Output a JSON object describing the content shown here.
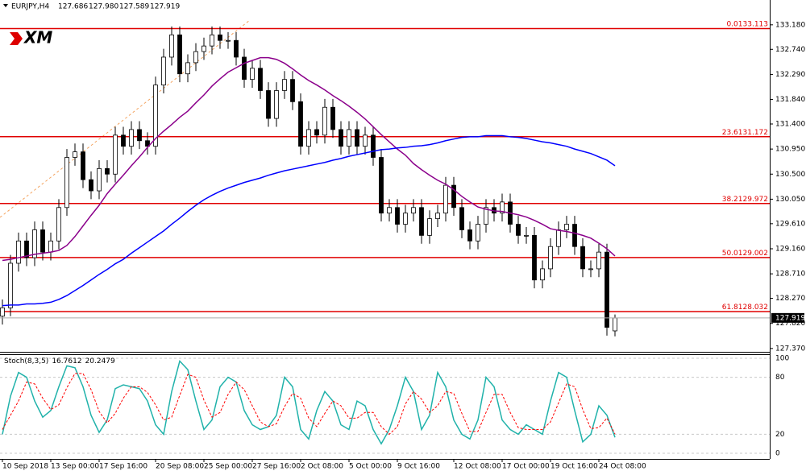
{
  "header": {
    "symbol": "EURJPY,H4",
    "ohlc": [
      "127.686",
      "127.980",
      "127.589",
      "127.919"
    ]
  },
  "logo": "XM",
  "chart_data": [
    {
      "type": "candlestick",
      "categories": [
        "10 Sep 2018",
        null,
        null,
        null,
        null,
        null,
        "13 Sep 00:00",
        null,
        null,
        null,
        null,
        null,
        "17 Sep 16:00",
        null,
        null,
        null,
        null,
        null,
        null,
        "20 Sep 08:00",
        null,
        null,
        null,
        null,
        null,
        "25 Sep 00:00",
        null,
        null,
        null,
        null,
        null,
        "27 Sep 16:00",
        null,
        null,
        null,
        null,
        null,
        "2 Oct 08:00",
        null,
        null,
        null,
        null,
        null,
        "5 Oct 00:00",
        null,
        null,
        null,
        null,
        null,
        "9 Oct 16:00",
        null,
        null,
        null,
        null,
        null,
        null,
        "12 Oct 08:00",
        null,
        null,
        null,
        null,
        null,
        "17 Oct 00:00",
        null,
        null,
        null,
        null,
        null,
        "19 Oct 16:00",
        null,
        null,
        null,
        null,
        null,
        "24 Oct 08:00",
        null,
        null
      ],
      "open": [
        127.95,
        128.1,
        128.9,
        129.3,
        129.0,
        129.5,
        129.1,
        129.3,
        129.9,
        130.8,
        130.9,
        130.4,
        130.2,
        130.6,
        130.5,
        131.2,
        131.0,
        131.3,
        131.1,
        131.0,
        132.1,
        132.6,
        133.0,
        132.3,
        132.5,
        132.7,
        132.8,
        133.0,
        132.9,
        132.9,
        132.6,
        132.2,
        132.4,
        132.0,
        131.5,
        132.0,
        132.2,
        131.8,
        131.0,
        131.3,
        131.2,
        131.7,
        131.3,
        131.0,
        131.3,
        131.0,
        131.2,
        130.8,
        129.8,
        129.9,
        129.6,
        129.8,
        129.9,
        129.4,
        129.7,
        129.8,
        130.3,
        129.9,
        129.5,
        129.3,
        129.6,
        129.9,
        129.8,
        130.0,
        129.6,
        129.4,
        129.4,
        128.6,
        128.8,
        129.2,
        129.5,
        129.6,
        129.2,
        128.8,
        128.8,
        129.1,
        127.686
      ],
      "high": [
        128.25,
        129.05,
        129.45,
        129.45,
        129.65,
        129.65,
        129.45,
        130.05,
        130.95,
        131.05,
        131.05,
        130.55,
        130.75,
        130.75,
        131.35,
        131.35,
        131.45,
        131.45,
        131.25,
        132.25,
        132.75,
        133.15,
        133.15,
        132.65,
        132.85,
        132.95,
        133.15,
        133.15,
        133.05,
        133.05,
        132.75,
        132.55,
        132.55,
        132.15,
        132.15,
        132.35,
        132.35,
        131.95,
        131.45,
        131.45,
        131.85,
        131.85,
        131.45,
        131.45,
        131.45,
        131.35,
        131.35,
        130.95,
        130.05,
        130.05,
        129.95,
        130.05,
        130.05,
        129.85,
        129.95,
        130.45,
        130.45,
        130.05,
        129.65,
        129.75,
        130.05,
        130.05,
        130.15,
        130.15,
        129.75,
        129.55,
        129.55,
        128.95,
        129.35,
        129.65,
        129.75,
        129.75,
        129.35,
        128.95,
        129.25,
        129.25,
        127.98
      ],
      "low": [
        127.8,
        127.95,
        128.75,
        128.85,
        128.85,
        128.95,
        128.95,
        129.15,
        129.75,
        130.65,
        130.25,
        130.05,
        130.05,
        130.35,
        130.35,
        130.85,
        130.85,
        130.95,
        130.85,
        130.85,
        131.95,
        132.45,
        132.15,
        132.15,
        132.35,
        132.55,
        132.65,
        132.75,
        132.75,
        132.45,
        132.05,
        132.05,
        131.85,
        131.35,
        131.35,
        131.85,
        131.65,
        130.85,
        130.85,
        131.05,
        131.05,
        131.15,
        130.85,
        130.85,
        130.85,
        130.85,
        130.65,
        129.65,
        129.65,
        129.45,
        129.45,
        129.65,
        129.25,
        129.25,
        129.55,
        129.65,
        129.75,
        129.35,
        129.15,
        129.15,
        129.45,
        129.65,
        129.65,
        129.45,
        129.25,
        129.25,
        128.45,
        128.45,
        128.65,
        129.05,
        129.35,
        129.05,
        128.65,
        128.65,
        128.65,
        127.6,
        127.589
      ],
      "close": [
        128.1,
        128.9,
        129.3,
        129.0,
        129.5,
        129.1,
        129.3,
        129.9,
        130.8,
        130.9,
        130.4,
        130.2,
        130.6,
        130.5,
        131.2,
        131.0,
        131.3,
        131.1,
        131.0,
        132.1,
        132.6,
        133.0,
        132.3,
        132.5,
        132.7,
        132.8,
        133.0,
        132.9,
        132.9,
        132.6,
        132.2,
        132.4,
        132.0,
        131.5,
        132.0,
        132.2,
        131.8,
        131.0,
        131.3,
        131.2,
        131.7,
        131.3,
        131.0,
        131.3,
        131.0,
        131.2,
        130.8,
        129.8,
        129.9,
        129.6,
        129.8,
        129.9,
        129.4,
        129.7,
        129.8,
        130.3,
        129.9,
        129.5,
        129.3,
        129.6,
        129.9,
        129.8,
        130.0,
        129.6,
        129.4,
        129.4,
        128.6,
        128.8,
        129.2,
        129.5,
        129.6,
        129.2,
        128.8,
        128.8,
        129.1,
        127.75,
        127.919
      ],
      "series": [
        {
          "color": "#8b008b",
          "values": [
            128.95,
            128.97,
            129.0,
            129.03,
            129.06,
            129.08,
            129.1,
            129.13,
            129.22,
            129.38,
            129.57,
            129.76,
            129.94,
            130.15,
            130.32,
            130.48,
            130.65,
            130.81,
            130.98,
            131.14,
            131.27,
            131.39,
            131.52,
            131.63,
            131.78,
            131.92,
            132.08,
            132.21,
            132.33,
            132.41,
            132.49,
            132.54,
            132.59,
            132.59,
            132.56,
            132.49,
            132.39,
            132.28,
            132.18,
            132.1,
            132.01,
            131.91,
            131.82,
            131.72,
            131.61,
            131.49,
            131.35,
            131.21,
            131.08,
            130.95,
            130.84,
            130.69,
            130.58,
            130.48,
            130.39,
            130.32,
            130.22,
            130.1,
            130.0,
            129.91,
            129.87,
            129.84,
            129.83,
            129.8,
            129.77,
            129.73,
            129.67,
            129.6,
            129.52,
            129.49,
            129.47,
            129.44,
            129.4,
            129.35,
            129.26,
            129.16,
            129.03
          ]
        },
        {
          "color": "#0000ff",
          "values": [
            128.14,
            128.15,
            128.15,
            128.17,
            128.17,
            128.18,
            128.2,
            128.25,
            128.32,
            128.41,
            128.5,
            128.6,
            128.7,
            128.79,
            128.89,
            128.97,
            129.08,
            129.18,
            129.28,
            129.38,
            129.48,
            129.6,
            129.71,
            129.83,
            129.94,
            130.04,
            130.12,
            130.19,
            130.25,
            130.3,
            130.35,
            130.39,
            130.43,
            130.48,
            130.52,
            130.56,
            130.59,
            130.62,
            130.65,
            130.68,
            130.71,
            130.75,
            130.78,
            130.82,
            130.85,
            130.88,
            130.91,
            130.94,
            130.95,
            130.97,
            130.98,
            131.0,
            131.01,
            131.03,
            131.06,
            131.1,
            131.13,
            131.16,
            131.17,
            131.17,
            131.19,
            131.19,
            131.19,
            131.17,
            131.16,
            131.14,
            131.11,
            131.08,
            131.06,
            131.03,
            131.0,
            130.95,
            130.91,
            130.87,
            130.81,
            130.75,
            130.65
          ]
        }
      ],
      "fibonacci": [
        {
          "level": "0.0",
          "value": 133.113
        },
        {
          "level": "23.6",
          "value": 131.172
        },
        {
          "level": "38.2",
          "value": 129.972
        },
        {
          "level": "50.0",
          "value": 129.002
        },
        {
          "level": "61.8",
          "value": 128.032
        }
      ],
      "fib_color": "#e00000",
      "ylim": [
        127.31,
        133.51
      ],
      "yticks": [
        {
          "value": 127.37,
          "label": "127.370"
        },
        {
          "value": 127.82,
          "label": "127.820"
        },
        {
          "value": 128.27,
          "label": "128.270"
        },
        {
          "value": 128.71,
          "label": "128.710"
        },
        {
          "value": 129.16,
          "label": "129.160"
        },
        {
          "value": 129.61,
          "label": "129.610"
        },
        {
          "value": 130.05,
          "label": "130.050"
        },
        {
          "value": 130.5,
          "label": "130.500"
        },
        {
          "value": 130.95,
          "label": "130.950"
        },
        {
          "value": 131.4,
          "label": "131.400"
        },
        {
          "value": 131.84,
          "label": "131.840"
        },
        {
          "value": 132.29,
          "label": "132.290"
        },
        {
          "value": 132.74,
          "label": "132.740"
        },
        {
          "value": 133.18,
          "label": "133.180"
        }
      ]
    },
    {
      "type": "line",
      "title": "Stoch(8,3,5)",
      "series": [
        {
          "color": "#20b2aa",
          "values": [
            20,
            60,
            85,
            80,
            55,
            38,
            45,
            70,
            92,
            90,
            70,
            40,
            22,
            35,
            68,
            72,
            70,
            68,
            55,
            30,
            20,
            65,
            97,
            88,
            55,
            25,
            35,
            70,
            80,
            75,
            45,
            30,
            25,
            28,
            40,
            80,
            70,
            25,
            15,
            45,
            65,
            55,
            30,
            25,
            55,
            50,
            25,
            10,
            25,
            50,
            80,
            65,
            25,
            40,
            85,
            70,
            35,
            20,
            15,
            35,
            80,
            70,
            35,
            25,
            20,
            30,
            25,
            20,
            55,
            85,
            80,
            45,
            12,
            20,
            50,
            40,
            16.7612
          ]
        },
        {
          "color": "#ff0000",
          "dashed": true,
          "values": [
            25,
            40,
            55,
            75,
            73,
            58,
            46,
            51,
            69,
            84,
            84,
            67,
            44,
            32,
            42,
            58,
            70,
            70,
            64,
            51,
            35,
            38,
            61,
            83,
            80,
            56,
            38,
            43,
            62,
            75,
            67,
            50,
            33,
            28,
            31,
            49,
            63,
            58,
            37,
            28,
            42,
            55,
            50,
            37,
            37,
            43,
            43,
            28,
            20,
            28,
            52,
            65,
            57,
            43,
            50,
            65,
            63,
            42,
            23,
            23,
            43,
            62,
            62,
            43,
            27,
            25,
            25,
            25,
            33,
            53,
            73,
            70,
            46,
            26,
            27,
            37,
            20.2479
          ]
        }
      ],
      "ylim": [
        -5.9,
        104.2
      ],
      "yticks": [
        0,
        20,
        80,
        100
      ]
    }
  ]
}
